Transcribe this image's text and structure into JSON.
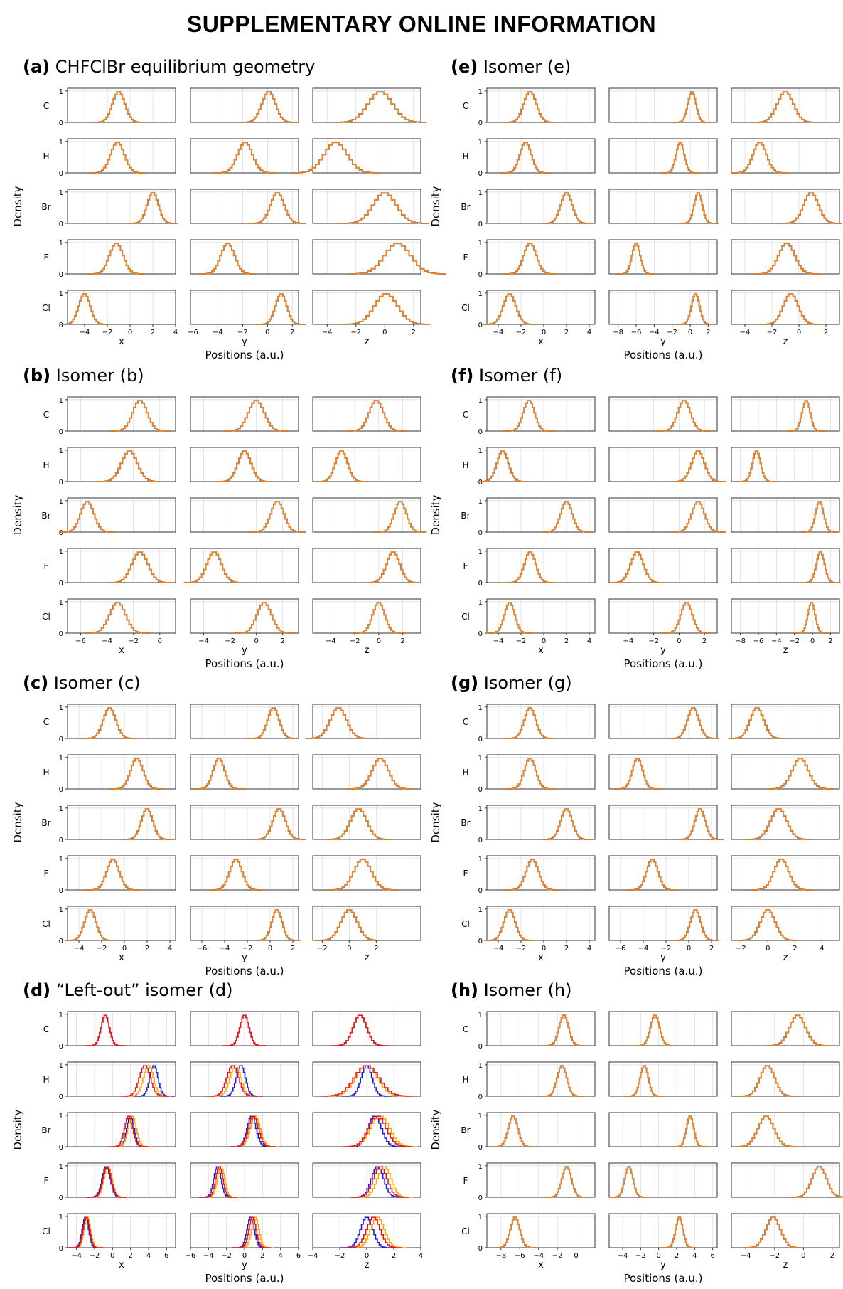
{
  "page": {
    "title": "SUPPLEMENTARY ONLINE INFORMATION"
  },
  "atoms": [
    "C",
    "H",
    "Br",
    "F",
    "Cl"
  ],
  "common": {
    "ylabel": "Density",
    "xlabel": "Positions (a.u.)",
    "column_labels": [
      "x",
      "y",
      "z"
    ],
    "ytick_labels": [
      "0",
      "1"
    ]
  },
  "colors": {
    "orange": "#ff7f0e",
    "blue": "#1f77b4",
    "red": "#e8141c",
    "darkblue": "#1a1adf",
    "gold": "#ffa500",
    "grid": "#d9d9d9"
  },
  "chart_data": [
    {
      "type": "histogram",
      "id": "a",
      "letter": "(a)",
      "title": "CHFClBr equilibrium geometry",
      "xlims": [
        [
          -5.5,
          4
        ],
        [
          -6.2,
          2.5
        ],
        [
          -5,
          2.5
        ]
      ],
      "xticks": [
        [
          -4,
          -2,
          0,
          2,
          4
        ],
        [
          -6,
          -4,
          -2,
          0,
          2
        ],
        [
          -4,
          -2,
          0,
          2
        ]
      ],
      "series": [
        {
          "colors": [
            "#1f77b4",
            "#ff7f0e"
          ],
          "peaks": [
            [
              [
                -1.0,
                0.55
              ],
              [
                0.1,
                0.55
              ],
              [
                -0.3,
                0.85
              ]
            ],
            [
              [
                -1.1,
                0.6
              ],
              [
                -1.8,
                0.6
              ],
              [
                -3.4,
                0.8
              ]
            ],
            [
              [
                2.0,
                0.5
              ],
              [
                0.8,
                0.55
              ],
              [
                0.0,
                0.8
              ]
            ],
            [
              [
                -1.2,
                0.6
              ],
              [
                -3.2,
                0.55
              ],
              [
                0.9,
                0.9
              ]
            ],
            [
              [
                -4.0,
                0.5
              ],
              [
                1.1,
                0.45
              ],
              [
                0.1,
                0.8
              ]
            ]
          ]
        }
      ]
    },
    {
      "type": "histogram",
      "id": "b",
      "letter": "(b)",
      "title": "Isomer (b)",
      "xlims": [
        [
          -7,
          1.2
        ],
        [
          -5,
          3.2
        ],
        [
          -5.5,
          3.5
        ]
      ],
      "xticks": [
        [
          -6,
          -4,
          -2,
          0
        ],
        [
          -4,
          -2,
          0,
          2
        ],
        [
          -4,
          -2,
          0,
          2
        ]
      ],
      "series": [
        {
          "colors": [
            "#1f77b4",
            "#ff7f0e"
          ],
          "peaks": [
            [
              [
                -1.5,
                0.55
              ],
              [
                0.0,
                0.6
              ],
              [
                -0.2,
                0.6
              ]
            ],
            [
              [
                -2.3,
                0.6
              ],
              [
                -0.9,
                0.5
              ],
              [
                -3.1,
                0.5
              ]
            ],
            [
              [
                -5.5,
                0.5
              ],
              [
                1.6,
                0.5
              ],
              [
                1.8,
                0.5
              ]
            ],
            [
              [
                -1.5,
                0.6
              ],
              [
                -3.2,
                0.55
              ],
              [
                1.2,
                0.55
              ]
            ],
            [
              [
                -3.2,
                0.6
              ],
              [
                0.6,
                0.55
              ],
              [
                0.0,
                0.5
              ]
            ]
          ]
        }
      ]
    },
    {
      "type": "histogram",
      "id": "c",
      "letter": "(c)",
      "title": "Isomer (c)",
      "xlims": [
        [
          -5,
          4.5
        ],
        [
          -7,
          2.5
        ],
        [
          -2.7,
          5.3
        ]
      ],
      "xticks": [
        [
          -4,
          -2,
          0,
          2,
          4
        ],
        [
          -6,
          -4,
          -2,
          0,
          2
        ],
        [
          -2,
          0,
          2
        ]
      ],
      "series": [
        {
          "colors": [
            "#1f77b4",
            "#ff7f0e"
          ],
          "peaks": [
            [
              [
                -1.3,
                0.55
              ],
              [
                0.3,
                0.5
              ],
              [
                -0.8,
                0.6
              ]
            ],
            [
              [
                1.1,
                0.55
              ],
              [
                -4.5,
                0.5
              ],
              [
                2.3,
                0.6
              ]
            ],
            [
              [
                2.0,
                0.5
              ],
              [
                0.8,
                0.55
              ],
              [
                0.7,
                0.6
              ]
            ],
            [
              [
                -1.0,
                0.55
              ],
              [
                -3.0,
                0.55
              ],
              [
                1.0,
                0.65
              ]
            ],
            [
              [
                -3.0,
                0.5
              ],
              [
                0.6,
                0.45
              ],
              [
                0.0,
                0.6
              ]
            ]
          ]
        }
      ]
    },
    {
      "type": "histogram",
      "id": "d",
      "letter": "(d)",
      "title": "“Left-out” isomer (d)",
      "xlims": [
        [
          -5,
          7
        ],
        [
          -6,
          6
        ],
        [
          -4,
          4
        ]
      ],
      "xticks": [
        [
          -4,
          -2,
          0,
          2,
          4,
          6
        ],
        [
          -6,
          -4,
          -2,
          0,
          2,
          4,
          6
        ],
        [
          -4,
          -2,
          0,
          2,
          4
        ]
      ],
      "series": [
        {
          "colors": [
            "#1a1adf"
          ],
          "peaks": [
            [
              [
                -0.8,
                0.45
              ],
              [
                0.0,
                0.5
              ],
              [
                -0.5,
                0.5
              ]
            ],
            [
              [
                4.6,
                0.45
              ],
              [
                -0.4,
                0.5
              ],
              [
                0.0,
                0.4
              ]
            ],
            [
              [
                2.0,
                0.4
              ],
              [
                0.8,
                0.5
              ],
              [
                0.6,
                0.5
              ]
            ],
            [
              [
                -0.7,
                0.45
              ],
              [
                -3.0,
                0.4
              ],
              [
                0.8,
                0.45
              ]
            ],
            [
              [
                -3.0,
                0.35
              ],
              [
                0.7,
                0.4
              ],
              [
                0.0,
                0.45
              ]
            ]
          ]
        },
        {
          "colors": [
            "#ffa500"
          ],
          "peaks": [
            [
              [
                -0.8,
                0.45
              ],
              [
                0.0,
                0.5
              ],
              [
                -0.5,
                0.5
              ]
            ],
            [
              [
                4.0,
                0.55
              ],
              [
                -1.0,
                0.6
              ],
              [
                0.0,
                0.8
              ]
            ],
            [
              [
                2.2,
                0.45
              ],
              [
                1.2,
                0.55
              ],
              [
                1.0,
                0.7
              ]
            ],
            [
              [
                -0.5,
                0.45
              ],
              [
                -2.6,
                0.4
              ],
              [
                1.3,
                0.5
              ]
            ],
            [
              [
                -2.8,
                0.35
              ],
              [
                1.2,
                0.4
              ],
              [
                0.8,
                0.5
              ]
            ]
          ]
        },
        {
          "colors": [
            "#e8141c"
          ],
          "peaks": [
            [
              [
                -0.8,
                0.45
              ],
              [
                0.0,
                0.5
              ],
              [
                -0.5,
                0.5
              ]
            ],
            [
              [
                3.6,
                0.6
              ],
              [
                -1.3,
                0.65
              ],
              [
                0.0,
                0.9
              ]
            ],
            [
              [
                1.8,
                0.45
              ],
              [
                1.0,
                0.55
              ],
              [
                0.8,
                0.65
              ]
            ],
            [
              [
                -0.6,
                0.45
              ],
              [
                -2.8,
                0.4
              ],
              [
                1.0,
                0.5
              ]
            ],
            [
              [
                -2.9,
                0.35
              ],
              [
                0.9,
                0.4
              ],
              [
                0.5,
                0.5
              ]
            ]
          ]
        }
      ]
    },
    {
      "type": "histogram",
      "id": "e",
      "letter": "(e)",
      "title": "Isomer (e)",
      "xlims": [
        [
          -5,
          4.5
        ],
        [
          -9,
          3
        ],
        [
          -5,
          3
        ]
      ],
      "xticks": [
        [
          -4,
          -2,
          0,
          2,
          4
        ],
        [
          -8,
          -6,
          -4,
          -2,
          0,
          2
        ],
        [
          -4,
          -2,
          0,
          2
        ]
      ],
      "series": [
        {
          "colors": [
            "#1f77b4",
            "#ff7f0e"
          ],
          "peaks": [
            [
              [
                -1.2,
                0.55
              ],
              [
                0.2,
                0.45
              ],
              [
                -1.0,
                0.6
              ]
            ],
            [
              [
                -1.6,
                0.5
              ],
              [
                -1.1,
                0.45
              ],
              [
                -2.9,
                0.5
              ]
            ],
            [
              [
                2.0,
                0.5
              ],
              [
                0.9,
                0.45
              ],
              [
                0.9,
                0.55
              ]
            ],
            [
              [
                -1.2,
                0.55
              ],
              [
                -6.0,
                0.45
              ],
              [
                -0.9,
                0.6
              ]
            ],
            [
              [
                -3.0,
                0.55
              ],
              [
                0.6,
                0.45
              ],
              [
                -0.6,
                0.55
              ]
            ]
          ]
        }
      ]
    },
    {
      "type": "histogram",
      "id": "f",
      "letter": "(f)",
      "title": "Isomer (f)",
      "xlims": [
        [
          -5,
          4.5
        ],
        [
          -5.5,
          3
        ],
        [
          -9,
          3
        ]
      ],
      "xticks": [
        [
          -4,
          -2,
          0,
          2,
          4
        ],
        [
          -4,
          -2,
          0,
          2
        ],
        [
          -8,
          -6,
          -4,
          -2,
          0,
          2
        ]
      ],
      "series": [
        {
          "colors": [
            "#1f77b4",
            "#ff7f0e"
          ],
          "peaks": [
            [
              [
                -1.3,
                0.5
              ],
              [
                0.4,
                0.5
              ],
              [
                -0.7,
                0.45
              ]
            ],
            [
              [
                -3.6,
                0.5
              ],
              [
                1.5,
                0.5
              ],
              [
                -6.2,
                0.45
              ]
            ],
            [
              [
                2.0,
                0.5
              ],
              [
                1.5,
                0.5
              ],
              [
                0.8,
                0.45
              ]
            ],
            [
              [
                -1.2,
                0.5
              ],
              [
                -3.3,
                0.5
              ],
              [
                0.9,
                0.45
              ]
            ],
            [
              [
                -3.0,
                0.45
              ],
              [
                0.6,
                0.45
              ],
              [
                -0.1,
                0.4
              ]
            ]
          ]
        }
      ]
    },
    {
      "type": "histogram",
      "id": "g",
      "letter": "(g)",
      "title": "Isomer (g)",
      "xlims": [
        [
          -5,
          4.5
        ],
        [
          -7,
          2.5
        ],
        [
          -2.7,
          5.3
        ]
      ],
      "xticks": [
        [
          -4,
          -2,
          0,
          2,
          4
        ],
        [
          -6,
          -4,
          -2,
          0,
          2
        ],
        [
          -2,
          0,
          2,
          4
        ]
      ],
      "series": [
        {
          "colors": [
            "#1f77b4",
            "#ff7f0e"
          ],
          "peaks": [
            [
              [
                -1.2,
                0.5
              ],
              [
                0.4,
                0.5
              ],
              [
                -0.8,
                0.5
              ]
            ],
            [
              [
                -1.2,
                0.5
              ],
              [
                -4.5,
                0.45
              ],
              [
                2.4,
                0.6
              ]
            ],
            [
              [
                2.0,
                0.5
              ],
              [
                1.0,
                0.45
              ],
              [
                0.8,
                0.6
              ]
            ],
            [
              [
                -1.0,
                0.55
              ],
              [
                -3.2,
                0.5
              ],
              [
                1.0,
                0.55
              ]
            ],
            [
              [
                -3.0,
                0.5
              ],
              [
                0.6,
                0.45
              ],
              [
                0.0,
                0.55
              ]
            ]
          ]
        }
      ]
    },
    {
      "type": "histogram",
      "id": "h",
      "letter": "(h)",
      "title": "Isomer (h)",
      "xlims": [
        [
          -9.5,
          2
        ],
        [
          -5.5,
          6.5
        ],
        [
          -5,
          2.5
        ]
      ],
      "xticks": [
        [
          -8,
          -6,
          -4,
          -2,
          0
        ],
        [
          -4,
          -2,
          0,
          2,
          4,
          6
        ],
        [
          -4,
          -2,
          0,
          2
        ]
      ],
      "series": [
        {
          "colors": [
            "#1f77b4",
            "#ff7f0e"
          ],
          "peaks": [
            [
              [
                -1.3,
                0.5
              ],
              [
                -0.4,
                0.5
              ],
              [
                -0.4,
                0.55
              ]
            ],
            [
              [
                -1.5,
                0.5
              ],
              [
                -1.6,
                0.45
              ],
              [
                -2.5,
                0.5
              ]
            ],
            [
              [
                -6.7,
                0.5
              ],
              [
                3.5,
                0.4
              ],
              [
                -2.6,
                0.55
              ]
            ],
            [
              [
                -1.0,
                0.5
              ],
              [
                -3.3,
                0.45
              ],
              [
                1.1,
                0.5
              ]
            ],
            [
              [
                -6.5,
                0.5
              ],
              [
                2.3,
                0.4
              ],
              [
                -2.1,
                0.5
              ]
            ]
          ]
        }
      ]
    }
  ]
}
